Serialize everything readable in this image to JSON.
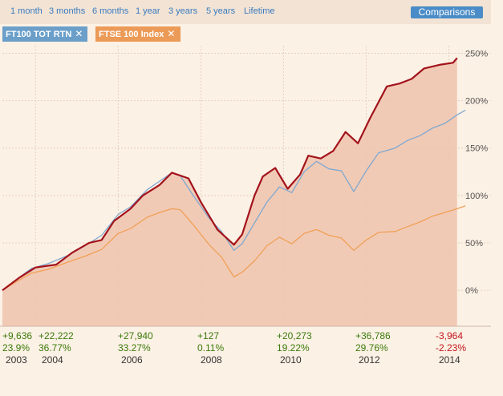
{
  "range_tabs": [
    "1 month",
    "3 months",
    "6 months",
    "1 year",
    "3 years",
    "5 years",
    "Lifetime"
  ],
  "comparisons_label": "Comparisons",
  "chips": [
    {
      "label": "FT100 TOT RTN",
      "close": "✕",
      "color": "#6b9fc9"
    },
    {
      "label": "FTSE 100 Index",
      "close": "✕",
      "color": "#ec9a57"
    }
  ],
  "colors": {
    "main_line": "#a3131b",
    "area_fill": "#efc3ae",
    "ft100": "#7fa8cf",
    "ftse": "#f0a055"
  },
  "chart_data": {
    "type": "line",
    "xlabel": "",
    "ylabel": "",
    "x_range": [
      2003.2,
      2014.3
    ],
    "ylim": [
      -38,
      258
    ],
    "y_ticks": [
      0,
      50,
      100,
      150,
      200,
      250
    ],
    "y_tick_labels": [
      "0%",
      "50%",
      "100%",
      "150%",
      "200%",
      "250%"
    ],
    "grid": true,
    "series": [
      {
        "name": "",
        "color": "#a3131b",
        "x": [
          2003.2,
          2003.6,
          2004.0,
          2004.5,
          2004.9,
          2005.3,
          2005.6,
          2005.9,
          2006.3,
          2006.6,
          2007.0,
          2007.3,
          2007.7,
          2008.0,
          2008.4,
          2008.8,
          2009.0,
          2009.3,
          2009.5,
          2009.8,
          2010.1,
          2010.4,
          2010.6,
          2010.9,
          2011.2,
          2011.5,
          2011.8,
          2012.1,
          2012.5,
          2012.8,
          2013.1,
          2013.4,
          2013.8,
          2014.1,
          2014.2
        ],
        "y": [
          0,
          13,
          24,
          27,
          40,
          50,
          53,
          73,
          86,
          100,
          111,
          124,
          118,
          93,
          64,
          48,
          59,
          100,
          120,
          129,
          107,
          122,
          142,
          139,
          147,
          167,
          155,
          182,
          215,
          218,
          223,
          234,
          238,
          240,
          245
        ]
      },
      {
        "name": "FT100 TOT RTN",
        "color": "#7fa8cf",
        "x": [
          2003.2,
          2003.5,
          2003.9,
          2004.3,
          2004.8,
          2005.2,
          2005.6,
          2006.0,
          2006.3,
          2006.7,
          2007.0,
          2007.3,
          2007.5,
          2007.8,
          2008.2,
          2008.5,
          2008.8,
          2009.0,
          2009.3,
          2009.6,
          2009.9,
          2010.2,
          2010.5,
          2010.8,
          2011.1,
          2011.4,
          2011.7,
          2012.0,
          2012.3,
          2012.7,
          2013.0,
          2013.3,
          2013.6,
          2013.9,
          2014.2,
          2014.4
        ],
        "y": [
          0,
          10,
          23,
          28,
          37,
          47,
          58,
          80,
          88,
          106,
          115,
          124,
          121,
          101,
          76,
          62,
          42,
          49,
          71,
          93,
          109,
          103,
          125,
          136,
          128,
          126,
          104,
          126,
          145,
          150,
          158,
          163,
          171,
          176,
          185,
          190
        ]
      },
      {
        "name": "FTSE 100 Index",
        "color": "#f0a055",
        "x": [
          2003.2,
          2003.5,
          2003.9,
          2004.3,
          2004.8,
          2005.2,
          2005.6,
          2006.0,
          2006.3,
          2006.7,
          2007.0,
          2007.3,
          2007.5,
          2007.8,
          2008.2,
          2008.5,
          2008.8,
          2009.0,
          2009.3,
          2009.6,
          2009.9,
          2010.2,
          2010.5,
          2010.8,
          2011.1,
          2011.4,
          2011.7,
          2012.0,
          2012.3,
          2012.7,
          2013.0,
          2013.3,
          2013.6,
          2013.9,
          2014.2,
          2014.4
        ],
        "y": [
          0,
          8,
          18,
          22,
          30,
          36,
          43,
          60,
          65,
          77,
          82,
          86,
          85,
          70,
          48,
          35,
          14,
          19,
          31,
          47,
          56,
          49,
          60,
          64,
          58,
          55,
          42,
          53,
          61,
          62,
          67,
          72,
          78,
          82,
          86,
          89
        ]
      }
    ]
  },
  "stats": [
    {
      "abs": "+9,636",
      "pct": "23.9%",
      "year": "2003",
      "sign": "pos"
    },
    {
      "abs": "+22,222",
      "pct": "36.77%",
      "year": "2004",
      "sign": "pos"
    },
    {
      "abs": "+27,940",
      "pct": "33.27%",
      "year": "2006",
      "sign": "pos"
    },
    {
      "abs": "+127",
      "pct": "0.11%",
      "year": "2008",
      "sign": "pos"
    },
    {
      "abs": "+20,273",
      "pct": "19.22%",
      "year": "2010",
      "sign": "pos"
    },
    {
      "abs": "+36,786",
      "pct": "29.76%",
      "year": "2012",
      "sign": "pos"
    },
    {
      "abs": "-3,964",
      "pct": "-2.23%",
      "year": "2014",
      "sign": "neg"
    }
  ]
}
